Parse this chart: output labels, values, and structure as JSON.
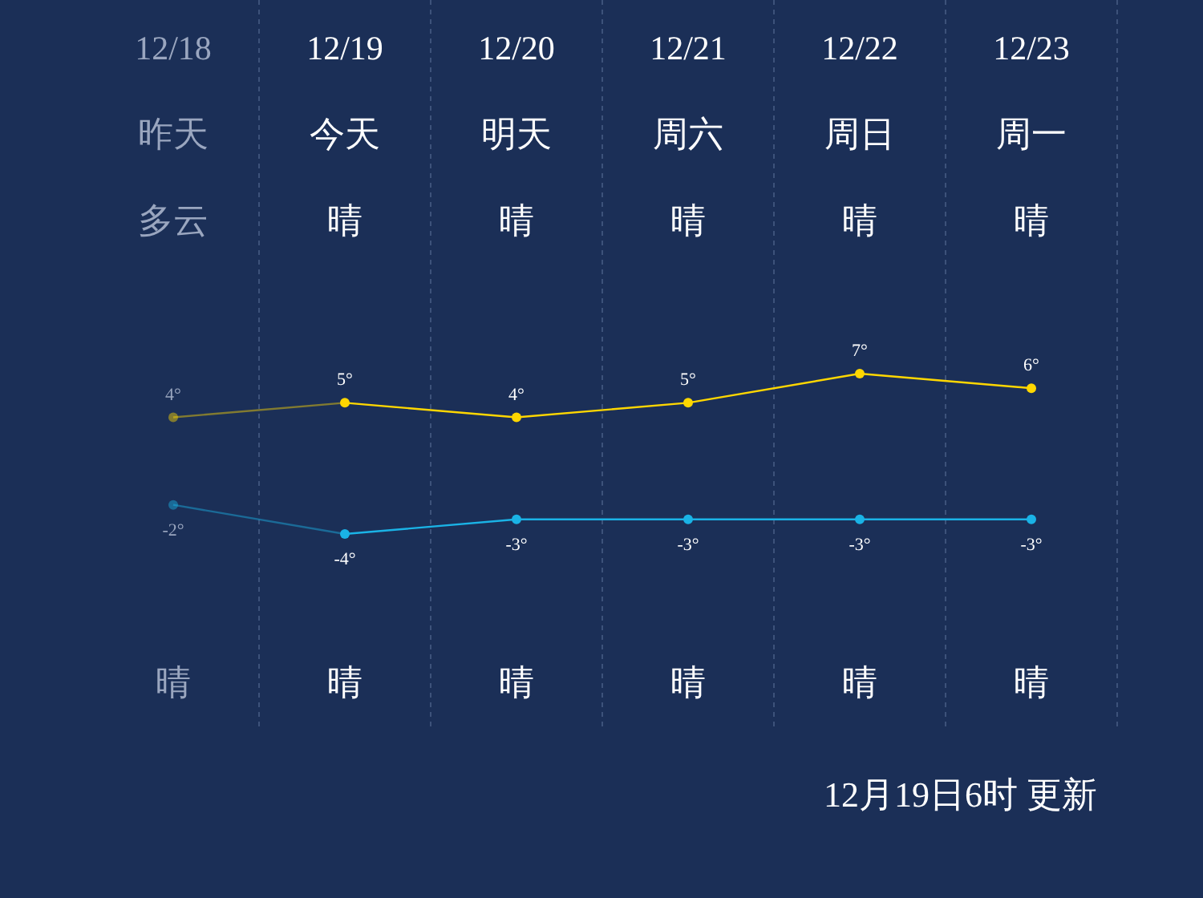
{
  "chart_data": {
    "type": "line",
    "categories": [
      "12/18",
      "12/19",
      "12/20",
      "12/21",
      "12/22",
      "12/23"
    ],
    "series": [
      {
        "color": "#ffd700",
        "values": [
          4,
          5,
          4,
          5,
          7,
          6
        ],
        "value_labels": [
          "4°",
          "5°",
          "4°",
          "5°",
          "7°",
          "6°"
        ]
      },
      {
        "color": "#1ab3e6",
        "values": [
          -2,
          -4,
          -3,
          -3,
          -3,
          -3
        ],
        "value_labels": [
          "-2°",
          "-4°",
          "-3°",
          "-3°",
          "-3°",
          "-3°"
        ]
      }
    ],
    "marker": "circle",
    "grid": "x",
    "annotations": [
      "昨天",
      "今天",
      "明天",
      "周六",
      "周日",
      "周一",
      "多云",
      "晴",
      "晴",
      "晴",
      "晴",
      "晴",
      "晴",
      "晴",
      "晴",
      "晴",
      "晴",
      "晴",
      "12月19日6时 更新"
    ]
  }
}
